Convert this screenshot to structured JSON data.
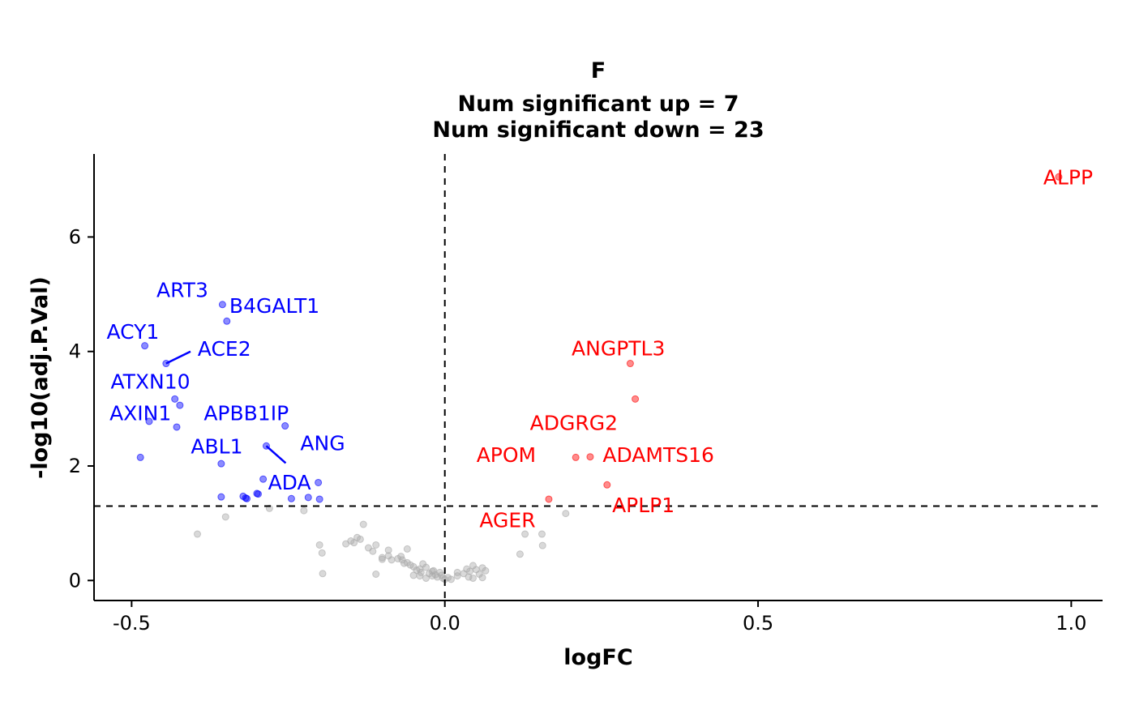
{
  "chart_data": {
    "type": "scatter",
    "title": "F",
    "subtitle_lines": [
      "Num significant up = 7",
      "Num significant down = 23"
    ],
    "xlabel": "logFC",
    "ylabel": "-log10(adj.P.Val)",
    "xlim": [
      -0.56,
      1.05
    ],
    "ylim": [
      -0.35,
      7.45
    ],
    "xticks": [
      -0.5,
      0.0,
      0.5,
      1.0
    ],
    "xtick_labels": [
      "-0.5",
      "0.0",
      "0.5",
      "1.0"
    ],
    "yticks": [
      0,
      2,
      4,
      6
    ],
    "ytick_labels": [
      "0",
      "2",
      "4",
      "6"
    ],
    "vline": 0,
    "hline": 1.3,
    "grid": false,
    "legend": "none",
    "colors": {
      "up": "#ff0000",
      "down": "#0000ff",
      "ns": "#aaaaaa",
      "label_up": "#ff0000",
      "label_down": "#0000ff"
    },
    "series": [
      {
        "group": "down",
        "points": [
          [
            -0.355,
            4.82
          ],
          [
            -0.348,
            4.53
          ],
          [
            -0.479,
            4.1
          ],
          [
            -0.445,
            3.79
          ],
          [
            -0.431,
            3.17
          ],
          [
            -0.423,
            3.06
          ],
          [
            -0.472,
            2.78
          ],
          [
            -0.428,
            2.68
          ],
          [
            -0.255,
            2.7
          ],
          [
            -0.285,
            2.35
          ],
          [
            -0.486,
            2.15
          ],
          [
            -0.357,
            2.04
          ],
          [
            -0.29,
            1.77
          ],
          [
            -0.202,
            1.71
          ],
          [
            -0.357,
            1.46
          ],
          [
            -0.318,
            1.44
          ],
          [
            -0.322,
            1.47
          ],
          [
            -0.3,
            1.52
          ],
          [
            -0.298,
            1.51
          ],
          [
            -0.245,
            1.43
          ],
          [
            -0.218,
            1.45
          ],
          [
            -0.2,
            1.42
          ],
          [
            -0.316,
            1.43
          ]
        ]
      },
      {
        "group": "up",
        "points": [
          [
            0.98,
            7.05
          ],
          [
            0.296,
            3.79
          ],
          [
            0.304,
            3.17
          ],
          [
            0.209,
            2.15
          ],
          [
            0.232,
            2.16
          ],
          [
            0.259,
            1.67
          ],
          [
            0.166,
            1.42
          ]
        ]
      },
      {
        "group": "ns",
        "points": [
          [
            -0.395,
            0.81
          ],
          [
            -0.35,
            1.11
          ],
          [
            -0.225,
            1.22
          ],
          [
            -0.2,
            0.62
          ],
          [
            -0.196,
            0.48
          ],
          [
            -0.158,
            0.64
          ],
          [
            -0.15,
            0.69
          ],
          [
            -0.145,
            0.66
          ],
          [
            -0.14,
            0.75
          ],
          [
            -0.135,
            0.72
          ],
          [
            -0.13,
            0.98
          ],
          [
            -0.122,
            0.57
          ],
          [
            -0.115,
            0.51
          ],
          [
            -0.09,
            0.43
          ],
          [
            -0.1,
            0.37
          ],
          [
            -0.085,
            0.36
          ],
          [
            -0.07,
            0.42
          ],
          [
            -0.068,
            0.36
          ],
          [
            -0.06,
            0.31
          ],
          [
            -0.06,
            0.55
          ],
          [
            -0.055,
            0.27
          ],
          [
            -0.05,
            0.24
          ],
          [
            -0.045,
            0.18
          ],
          [
            -0.04,
            0.2
          ],
          [
            -0.038,
            0.14
          ],
          [
            -0.035,
            0.29
          ],
          [
            -0.03,
            0.23
          ],
          [
            -0.025,
            0.12
          ],
          [
            -0.02,
            0.08
          ],
          [
            -0.018,
            0.17
          ],
          [
            -0.015,
            0.1
          ],
          [
            -0.012,
            0.06
          ],
          [
            -0.008,
            0.14
          ],
          [
            -0.005,
            0.09
          ],
          [
            -0.003,
            0.04
          ],
          [
            0.0,
            0.02
          ],
          [
            0.005,
            0.05
          ],
          [
            0.01,
            0.02
          ],
          [
            0.02,
            0.08
          ],
          [
            0.03,
            0.12
          ],
          [
            0.035,
            0.2
          ],
          [
            0.038,
            0.06
          ],
          [
            0.04,
            0.16
          ],
          [
            0.045,
            0.26
          ],
          [
            0.05,
            0.19
          ],
          [
            0.055,
            0.11
          ],
          [
            0.06,
            0.22
          ],
          [
            0.065,
            0.17
          ],
          [
            0.06,
            0.05
          ],
          [
            -0.11,
            0.62
          ],
          [
            -0.09,
            0.53
          ],
          [
            -0.075,
            0.38
          ],
          [
            -0.11,
            0.11
          ],
          [
            -0.04,
            0.08
          ],
          [
            -0.05,
            0.09
          ],
          [
            -0.03,
            0.04
          ],
          [
            0.045,
            0.04
          ],
          [
            0.12,
            0.46
          ],
          [
            0.128,
            0.81
          ],
          [
            0.155,
            0.81
          ],
          [
            0.156,
            0.61
          ],
          [
            0.193,
            1.17
          ],
          [
            -0.195,
            0.12
          ],
          [
            -0.28,
            1.26
          ],
          [
            -0.065,
            0.3
          ],
          [
            -0.1,
            0.4
          ],
          [
            -0.02,
            0.16
          ],
          [
            0.02,
            0.14
          ]
        ]
      }
    ],
    "labels": [
      {
        "text": "ALPP",
        "group": "up",
        "point": [
          0.98,
          7.05
        ],
        "pos": [
          0.995,
          7.05
        ],
        "anchor": "middle",
        "leader": false
      },
      {
        "text": "ANGPTL3",
        "group": "up",
        "point": [
          0.296,
          3.79
        ],
        "pos": [
          0.277,
          4.06
        ],
        "anchor": "middle",
        "leader": false
      },
      {
        "text": "ADGRG2",
        "group": "up",
        "point": [
          0.304,
          3.17
        ],
        "pos": [
          0.206,
          2.76
        ],
        "anchor": "middle",
        "leader": false
      },
      {
        "text": "APOM",
        "group": "up",
        "point": [
          0.209,
          2.15
        ],
        "pos": [
          0.098,
          2.2
        ],
        "anchor": "middle",
        "leader": false
      },
      {
        "text": "ADAMTS16",
        "group": "up",
        "point": [
          0.232,
          2.16
        ],
        "pos": [
          0.341,
          2.2
        ],
        "anchor": "middle",
        "leader": false
      },
      {
        "text": "APLP1",
        "group": "up",
        "point": [
          0.259,
          1.67
        ],
        "pos": [
          0.317,
          1.32
        ],
        "anchor": "middle",
        "leader": false
      },
      {
        "text": "AGER",
        "group": "up",
        "point": [
          0.166,
          1.42
        ],
        "pos": [
          0.1,
          1.06
        ],
        "anchor": "middle",
        "leader": false
      },
      {
        "text": "ART3",
        "group": "down",
        "point": [
          -0.355,
          4.82
        ],
        "pos": [
          -0.419,
          5.08
        ],
        "anchor": "middle",
        "leader": false
      },
      {
        "text": "B4GALT1",
        "group": "down",
        "point": [
          -0.348,
          4.53
        ],
        "pos": [
          -0.272,
          4.8
        ],
        "anchor": "middle",
        "leader": false
      },
      {
        "text": "ACY1",
        "group": "down",
        "point": [
          -0.479,
          4.1
        ],
        "pos": [
          -0.498,
          4.35
        ],
        "anchor": "middle",
        "leader": false
      },
      {
        "text": "ACE2",
        "group": "down",
        "point": [
          -0.445,
          3.79
        ],
        "pos": [
          -0.352,
          4.05
        ],
        "anchor": "middle",
        "leader": true,
        "leader_end": [
          -0.406,
          4.0
        ]
      },
      {
        "text": "ATXN10",
        "group": "down",
        "point": [
          -0.431,
          3.17
        ],
        "pos": [
          -0.47,
          3.48
        ],
        "anchor": "middle",
        "leader": false
      },
      {
        "text": "APBB1IP",
        "group": "down",
        "point": [
          -0.423,
          3.06
        ],
        "pos": [
          -0.317,
          2.93
        ],
        "anchor": "middle",
        "leader": false
      },
      {
        "text": "AXIN1",
        "group": "down",
        "point": [
          -0.472,
          2.78
        ],
        "pos": [
          -0.486,
          2.93
        ],
        "anchor": "middle",
        "leader": false
      },
      {
        "text": "ANG",
        "group": "down",
        "point": [
          -0.255,
          2.7
        ],
        "pos": [
          -0.195,
          2.4
        ],
        "anchor": "middle",
        "leader": false
      },
      {
        "text": "ABL1",
        "group": "down",
        "point": [
          -0.357,
          2.04
        ],
        "pos": [
          -0.364,
          2.35
        ],
        "anchor": "middle",
        "leader": false
      },
      {
        "text": "ADA",
        "group": "down",
        "point": [
          -0.285,
          2.35
        ],
        "pos": [
          -0.248,
          1.72
        ],
        "anchor": "middle",
        "leader": true,
        "leader_end": [
          -0.254,
          2.05
        ]
      }
    ]
  }
}
